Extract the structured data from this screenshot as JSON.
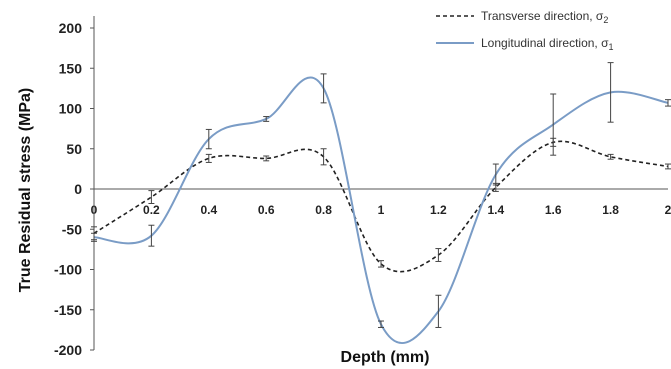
{
  "chart_data": {
    "type": "line",
    "xlabel": "Depth (mm)",
    "ylabel": "True Residual stress (MPa)",
    "xlim": [
      0,
      2
    ],
    "ylim": [
      -200,
      200
    ],
    "x_ticks": [
      "0",
      "0.2",
      "0.4",
      "0.6",
      "0.8",
      "1",
      "1.2",
      "1.4",
      "1.6",
      "1.8",
      "2"
    ],
    "y_ticks": [
      "200",
      "150",
      "100",
      "50",
      "0",
      "-50",
      "-100",
      "-150",
      "-200"
    ],
    "legend_position": "top-right",
    "series": [
      {
        "name": "Transverse direction, σ",
        "subscript": "2",
        "style": "dashed",
        "color": "#222222",
        "x": [
          0,
          0.2,
          0.4,
          0.6,
          0.8,
          1.0,
          1.2,
          1.4,
          1.6,
          1.8,
          2.0
        ],
        "values": [
          -55,
          -10,
          38,
          38,
          40,
          -93,
          -82,
          2,
          58,
          40,
          28
        ],
        "errors": [
          8,
          8,
          5,
          3,
          10,
          4,
          8,
          5,
          5,
          3,
          3
        ]
      },
      {
        "name": "Longitudinal direction, σ",
        "subscript": "1",
        "style": "solid",
        "color": "#7a9cc6",
        "x": [
          0,
          0.2,
          0.4,
          0.6,
          0.8,
          1.0,
          1.2,
          1.4,
          1.6,
          1.8,
          2.0
        ],
        "values": [
          -60,
          -58,
          62,
          87,
          125,
          -168,
          -152,
          18,
          80,
          120,
          107
        ],
        "errors": [
          5,
          13,
          12,
          3,
          18,
          4,
          20,
          13,
          38,
          37,
          4
        ]
      }
    ]
  }
}
